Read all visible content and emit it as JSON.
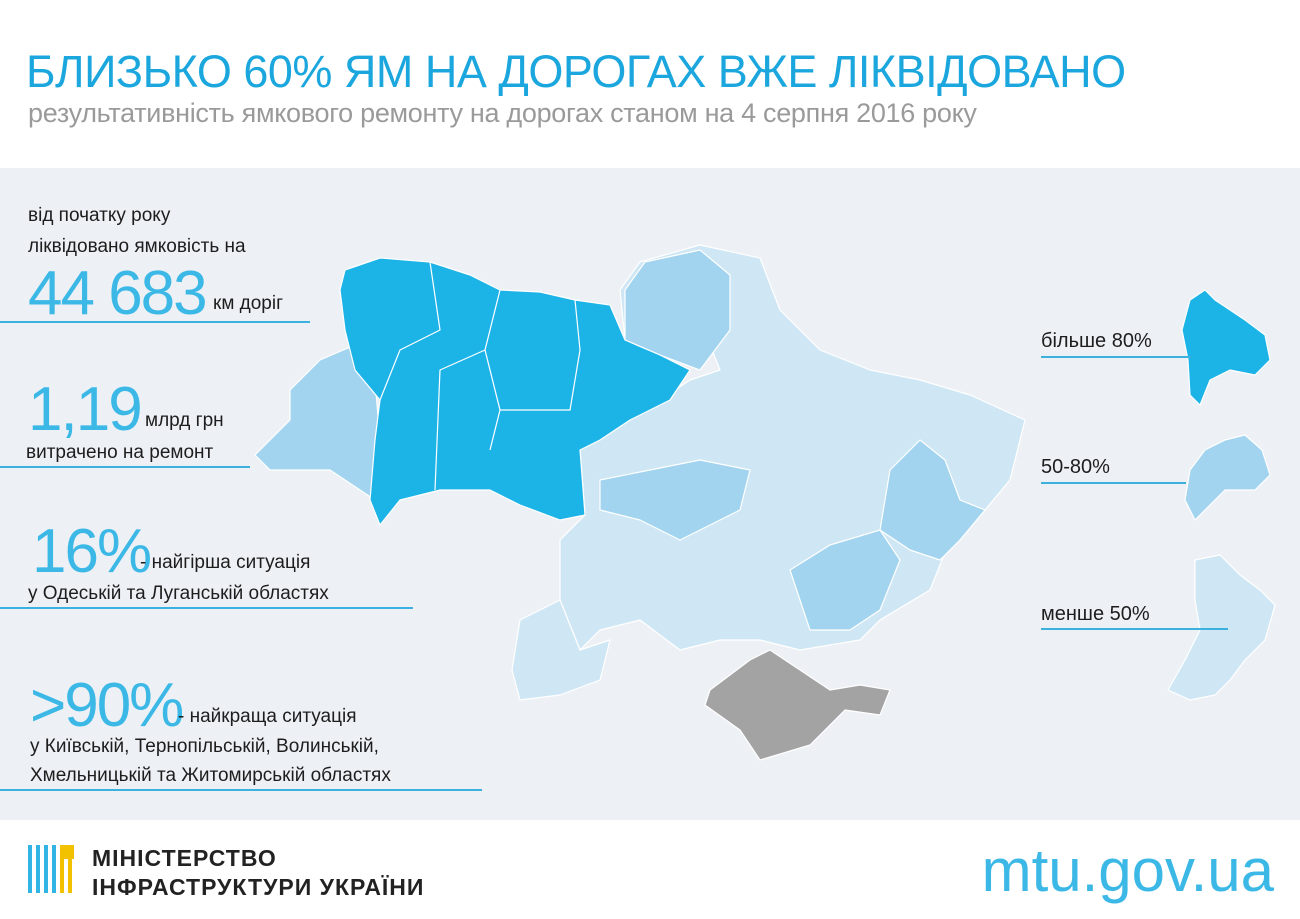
{
  "header": {
    "title": "БЛИЗЬКО 60% ЯМ НА ДОРОГАХ ВЖЕ ЛІКВІДОВАНО",
    "subtitle": "результативність ямкового ремонту на дорогах станом на 4 серпня 2016 року"
  },
  "stats": [
    {
      "intro": [
        "від початку року",
        "ліквідовано ямковість на"
      ],
      "big": "44 683",
      "unit": "км доріг"
    },
    {
      "big": "1,19",
      "unit": "млрд грн",
      "lines": [
        "витрачено на ремонт"
      ]
    },
    {
      "big": "16%",
      "unit": "- найгірша ситуація",
      "lines": [
        "у Одеській та Луганській областях"
      ]
    },
    {
      "big": ">90%",
      "unit": "- найкраща ситуація",
      "lines": [
        "у Київській, Тернопільській, Волинській,",
        "Хмельницькій та Житомирській областях"
      ]
    }
  ],
  "legend": [
    "більше 80%",
    "50-80%",
    "менше 50%"
  ],
  "footer": {
    "ministry": [
      "МІНІСТЕРСТВО",
      "ІНФРАСТРУКТУРИ УКРАЇНИ"
    ],
    "url": "mtu.gov.ua"
  }
}
